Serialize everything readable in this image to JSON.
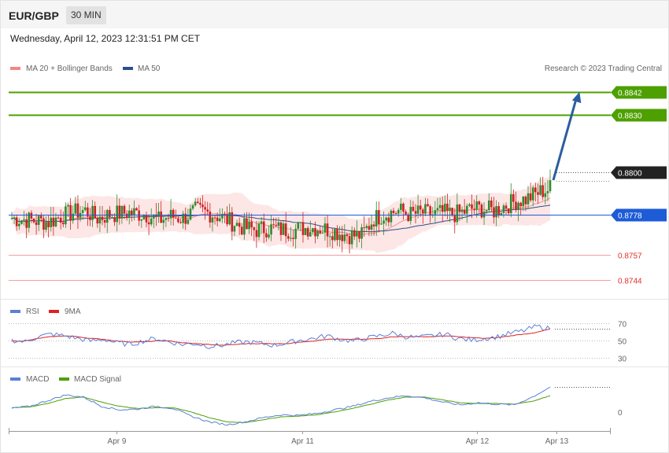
{
  "header": {
    "pair": "EUR/GBP",
    "timeframe": "30 MIN"
  },
  "timestamp": "Wednesday, April 12, 2023 12:31:51 PM CET",
  "credit": "Research © 2023 Trading Central",
  "colors": {
    "resistance": "#4da000",
    "pivot": "#1e5bd6",
    "support": "#e0302a",
    "current": "#222222",
    "arrow": "#2b5e9e",
    "rsi": "#5b7fd6",
    "rsi_ma": "#e02020",
    "macd": "#5b7fd6",
    "macd_signal": "#4da000",
    "bull": "#2e8b2e",
    "bear": "#d02020"
  },
  "chart_data": [
    {
      "type": "candlestick",
      "legend": [
        "MA 20 + Bollinger Bands",
        "MA 50"
      ],
      "ylim": [
        0.8736,
        0.8851
      ],
      "levels": [
        {
          "value": 0.8842,
          "label": "0.8842",
          "kind": "resistance"
        },
        {
          "value": 0.883,
          "label": "0.8830",
          "kind": "resistance"
        },
        {
          "value": 0.88,
          "label": "0.8800",
          "kind": "current"
        },
        {
          "value": 0.8778,
          "label": "0.8778",
          "kind": "pivot"
        },
        {
          "value": 0.8757,
          "label": "0.8757",
          "kind": "support"
        },
        {
          "value": 0.8744,
          "label": "0.8744",
          "kind": "support"
        }
      ],
      "x_ticks": [
        "Apr 9",
        "Apr 11",
        "Apr 12",
        "Apr 13"
      ],
      "close_path": [
        [
          0,
          0.8776
        ],
        [
          8,
          0.8775
        ],
        [
          15,
          0.8774
        ],
        [
          20,
          0.8777
        ],
        [
          25,
          0.8779
        ],
        [
          30,
          0.878
        ],
        [
          35,
          0.8776
        ],
        [
          40,
          0.8778
        ],
        [
          48,
          0.8779
        ],
        [
          55,
          0.8778
        ],
        [
          60,
          0.8775
        ],
        [
          65,
          0.8777
        ],
        [
          70,
          0.8776
        ],
        [
          75,
          0.878
        ],
        [
          80,
          0.8779
        ],
        [
          85,
          0.8777
        ],
        [
          90,
          0.8774
        ],
        [
          95,
          0.8771
        ],
        [
          100,
          0.877
        ],
        [
          105,
          0.8771
        ],
        [
          110,
          0.877
        ],
        [
          115,
          0.877
        ],
        [
          120,
          0.8771
        ],
        [
          125,
          0.8771
        ],
        [
          130,
          0.877
        ],
        [
          135,
          0.8768
        ],
        [
          140,
          0.8767
        ],
        [
          143,
          0.8767
        ],
        [
          148,
          0.8776
        ],
        [
          152,
          0.8778
        ],
        [
          158,
          0.878
        ],
        [
          163,
          0.8778
        ],
        [
          168,
          0.8779
        ],
        [
          172,
          0.8778
        ],
        [
          176,
          0.8779
        ],
        [
          180,
          0.8778
        ],
        [
          184,
          0.8779
        ],
        [
          188,
          0.8781
        ],
        [
          192,
          0.8781
        ],
        [
          197,
          0.878
        ],
        [
          202,
          0.8783
        ],
        [
          206,
          0.8785
        ],
        [
          210,
          0.8786
        ],
        [
          213,
          0.8788
        ],
        [
          216,
          0.879
        ],
        [
          219,
          0.8791
        ],
        [
          221,
          0.8793
        ]
      ],
      "arrow_target": [
        232,
        0.8842
      ]
    },
    {
      "type": "line",
      "legend": [
        "RSI",
        "9MA"
      ],
      "ylim": [
        25,
        75
      ],
      "levels": [
        70,
        50,
        30
      ],
      "rsi": [
        50,
        48,
        54,
        57,
        55,
        52,
        49,
        51,
        47,
        45,
        49,
        52,
        48,
        45,
        46,
        43,
        44,
        47,
        48,
        46,
        44,
        47,
        50,
        52,
        55,
        51,
        49,
        52,
        55,
        58,
        54,
        53,
        55,
        57,
        52,
        50,
        52,
        54,
        58,
        61,
        66,
        63
      ],
      "rsi_ma": [
        49,
        49,
        52,
        54,
        55,
        54,
        52,
        51,
        49,
        48,
        48,
        49,
        49,
        47,
        46,
        45,
        44,
        45,
        46,
        46,
        46,
        46,
        48,
        49,
        51,
        51,
        51,
        51,
        52,
        54,
        54,
        54,
        54,
        55,
        54,
        53,
        52,
        53,
        55,
        57,
        59,
        63
      ]
    },
    {
      "type": "line",
      "legend": [
        "MACD",
        "MACD Signal"
      ],
      "zero_label": "0",
      "macd": [
        0.3,
        0.6,
        1.4,
        2.2,
        1.9,
        0.6,
        0.1,
        0.2,
        0.6,
        0.3,
        -0.8,
        -1.6,
        -2.0,
        -1.6,
        -1.0,
        -0.6,
        -0.7,
        -0.4,
        0.1,
        0.6,
        1.3,
        1.8,
        2.1,
        1.8,
        1.2,
        0.8,
        1.1,
        0.9,
        0.8,
        1.9,
        3.3
      ],
      "macd_signal": [
        0.4,
        0.5,
        1.0,
        1.7,
        1.9,
        1.2,
        0.6,
        0.3,
        0.4,
        0.4,
        -0.2,
        -1.0,
        -1.6,
        -1.7,
        -1.3,
        -0.9,
        -0.8,
        -0.6,
        -0.2,
        0.3,
        0.9,
        1.5,
        1.9,
        1.9,
        1.5,
        1.1,
        1.0,
        1.0,
        0.9,
        1.3,
        2.1
      ]
    }
  ]
}
